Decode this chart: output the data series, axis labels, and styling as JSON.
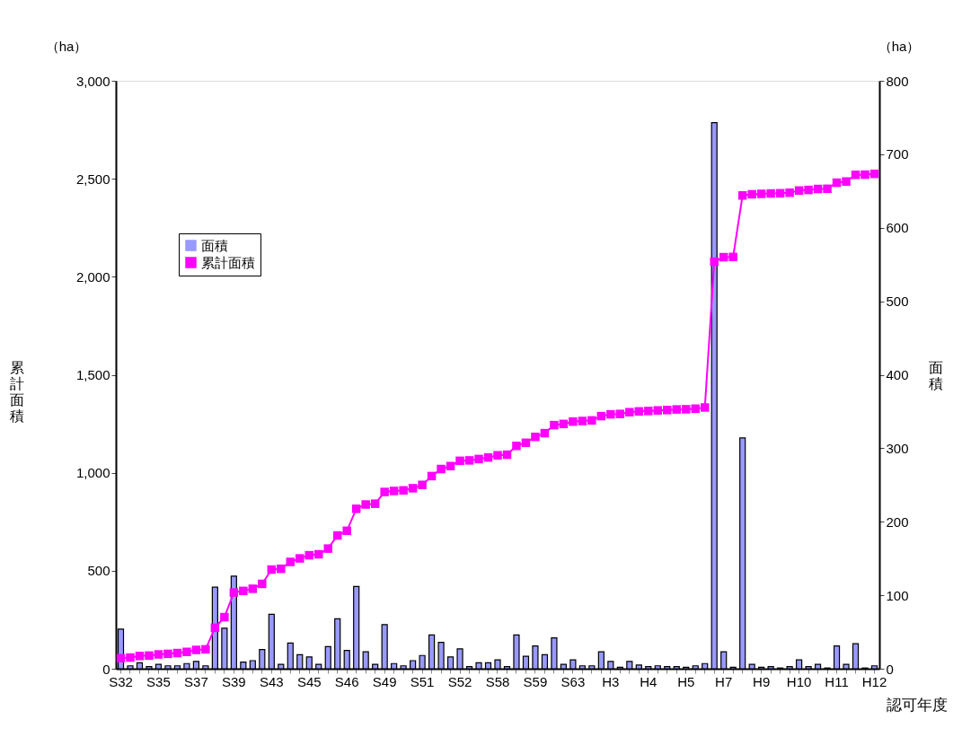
{
  "chart_data": {
    "type": "bar",
    "xlabel": "認可年度",
    "ylabel": "累計面積",
    "y2label": "面積",
    "annotations": [
      "（ha）",
      "（ha）"
    ],
    "categories": [
      "S32",
      null,
      null,
      null,
      "S35",
      null,
      null,
      null,
      "S37",
      null,
      null,
      null,
      "S39",
      null,
      null,
      null,
      "S43",
      null,
      null,
      null,
      "S45",
      null,
      null,
      null,
      "S46",
      null,
      null,
      null,
      "S49",
      null,
      null,
      null,
      "S51",
      null,
      null,
      null,
      "S52",
      null,
      null,
      null,
      "S58",
      null,
      null,
      null,
      "S59",
      null,
      null,
      null,
      "S63",
      null,
      null,
      null,
      "H3",
      null,
      null,
      null,
      "H4",
      null,
      null,
      null,
      "H5",
      null,
      null,
      null,
      "H7",
      null,
      null,
      null,
      "H9",
      null,
      null,
      null,
      "H10",
      null,
      null,
      null,
      "H11",
      null,
      null,
      null,
      "H12"
    ],
    "series": [
      {
        "name": "面積",
        "axis": "y2",
        "color": "#9999ff",
        "values": [
          54,
          4,
          8,
          3,
          6,
          4,
          4,
          7,
          10,
          4,
          111,
          55,
          126,
          9,
          11,
          26,
          74,
          6,
          35,
          19,
          16,
          6,
          30,
          68,
          25,
          112,
          23,
          6,
          60,
          7,
          4,
          11,
          18,
          46,
          36,
          16,
          27,
          3,
          8,
          8,
          12,
          3,
          46,
          17,
          31,
          19,
          42,
          6,
          12,
          4,
          4,
          23,
          10,
          2,
          10,
          5,
          3,
          4,
          3,
          3,
          2,
          4,
          7,
          743,
          23,
          2,
          314,
          6,
          2,
          3,
          1,
          3,
          12,
          3,
          6,
          1,
          31,
          6,
          34,
          1,
          4
        ]
      },
      {
        "name": "累計面積",
        "type": "line",
        "color": "#ff00ff",
        "values": [
          54,
          57,
          65,
          67,
          73,
          76,
          80,
          86,
          96,
          99,
          209,
          263,
          389,
          397,
          408,
          433,
          506,
          510,
          545,
          563,
          579,
          584,
          613,
          680,
          704,
          816,
          838,
          842,
          902,
          907,
          910,
          921,
          938,
          983,
          1019,
          1034,
          1061,
          1063,
          1070,
          1078,
          1089,
          1092,
          1137,
          1153,
          1183,
          1202,
          1243,
          1249,
          1261,
          1264,
          1267,
          1289,
          1298,
          1300,
          1309,
          1313,
          1315,
          1318,
          1320,
          1323,
          1324,
          1327,
          1333,
          2077,
          2100,
          2101,
          2415,
          2421,
          2423,
          2425,
          2426,
          2429,
          2440,
          2443,
          2448,
          2449,
          2480,
          2486,
          2520,
          2521,
          2525
        ]
      }
    ],
    "ylim": [
      0,
      3000
    ],
    "yticks": [
      0,
      {
        "value": 500,
        "label": "500"
      },
      {
        "value": 1000,
        "label": "1,000"
      },
      {
        "value": 1500,
        "label": "1,500"
      },
      {
        "value": 2000,
        "label": "2,000"
      },
      {
        "value": 2500,
        "label": "2,500"
      },
      {
        "value": 3000,
        "label": "3,000"
      }
    ],
    "y2lim": [
      0,
      800
    ],
    "y2ticks": [
      0,
      100,
      200,
      300,
      400,
      500,
      600,
      700,
      800
    ],
    "legend": "top left",
    "marker": "square",
    "line_style": "solid",
    "grid": false
  }
}
